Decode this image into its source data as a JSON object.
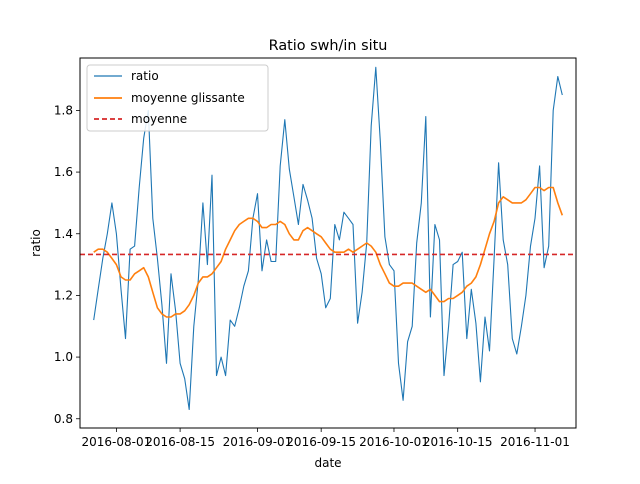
{
  "chart_data": {
    "type": "line",
    "title": "Ratio swh/in situ",
    "xlabel": "date",
    "ylabel": "ratio",
    "xlim": [
      "2016-07-24",
      "2016-11-10"
    ],
    "ylim": [
      0.77,
      1.97
    ],
    "x_ticks": [
      "2016-08-01",
      "2016-08-15",
      "2016-09-01",
      "2016-09-15",
      "2016-10-01",
      "2016-10-15",
      "2016-11-01"
    ],
    "y_ticks": [
      0.8,
      1.0,
      1.2,
      1.4,
      1.6,
      1.8
    ],
    "grid": false,
    "legend_position": "top-left",
    "start_date": "2016-07-27",
    "dates": [
      "2016-07-27",
      "2016-07-28",
      "2016-07-29",
      "2016-07-30",
      "2016-07-31",
      "2016-08-01",
      "2016-08-02",
      "2016-08-03",
      "2016-08-04",
      "2016-08-05",
      "2016-08-06",
      "2016-08-07",
      "2016-08-08",
      "2016-08-09",
      "2016-08-10",
      "2016-08-11",
      "2016-08-12",
      "2016-08-13",
      "2016-08-14",
      "2016-08-15",
      "2016-08-16",
      "2016-08-17",
      "2016-08-18",
      "2016-08-19",
      "2016-08-20",
      "2016-08-21",
      "2016-08-22",
      "2016-08-23",
      "2016-08-24",
      "2016-08-25",
      "2016-08-26",
      "2016-08-27",
      "2016-08-28",
      "2016-08-29",
      "2016-08-30",
      "2016-08-31",
      "2016-09-01",
      "2016-09-02",
      "2016-09-03",
      "2016-09-04",
      "2016-09-05",
      "2016-09-06",
      "2016-09-07",
      "2016-09-08",
      "2016-09-09",
      "2016-09-10",
      "2016-09-11",
      "2016-09-12",
      "2016-09-13",
      "2016-09-14",
      "2016-09-15",
      "2016-09-16",
      "2016-09-17",
      "2016-09-18",
      "2016-09-19",
      "2016-09-20",
      "2016-09-21",
      "2016-09-22",
      "2016-09-23",
      "2016-09-24",
      "2016-09-25",
      "2016-09-26",
      "2016-09-27",
      "2016-09-28",
      "2016-09-29",
      "2016-09-30",
      "2016-10-01",
      "2016-10-02",
      "2016-10-03",
      "2016-10-04",
      "2016-10-05",
      "2016-10-06",
      "2016-10-07",
      "2016-10-08",
      "2016-10-09",
      "2016-10-10",
      "2016-10-11",
      "2016-10-12",
      "2016-10-13",
      "2016-10-14",
      "2016-10-15",
      "2016-10-16",
      "2016-10-17",
      "2016-10-18",
      "2016-10-19",
      "2016-10-20",
      "2016-10-21",
      "2016-10-22",
      "2016-10-23",
      "2016-10-24",
      "2016-10-25",
      "2016-10-26",
      "2016-10-27",
      "2016-10-28",
      "2016-10-29",
      "2016-10-30",
      "2016-10-31",
      "2016-11-01",
      "2016-11-02",
      "2016-11-03",
      "2016-11-04",
      "2016-11-05",
      "2016-11-06",
      "2016-11-07"
    ],
    "series": [
      {
        "name": "ratio",
        "color": "#1f77b4",
        "style": "solid",
        "values": [
          1.12,
          1.22,
          1.32,
          1.4,
          1.5,
          1.4,
          1.22,
          1.06,
          1.35,
          1.36,
          1.55,
          1.71,
          1.8,
          1.45,
          1.32,
          1.17,
          0.98,
          1.27,
          1.15,
          0.98,
          0.93,
          0.83,
          1.1,
          1.25,
          1.5,
          1.3,
          1.59,
          0.94,
          1.0,
          0.94,
          1.12,
          1.1,
          1.16,
          1.23,
          1.28,
          1.45,
          1.53,
          1.28,
          1.38,
          1.31,
          1.31,
          1.62,
          1.77,
          1.61,
          1.52,
          1.43,
          1.56,
          1.51,
          1.45,
          1.32,
          1.27,
          1.16,
          1.19,
          1.43,
          1.38,
          1.47,
          1.45,
          1.43,
          1.11,
          1.21,
          1.37,
          1.75,
          1.94,
          1.7,
          1.39,
          1.3,
          1.28,
          0.98,
          0.86,
          1.05,
          1.1,
          1.37,
          1.5,
          1.78,
          1.13,
          1.43,
          1.38,
          0.94,
          1.1,
          1.3,
          1.31,
          1.34,
          1.06,
          1.22,
          1.11,
          0.92,
          1.13,
          1.02,
          1.32,
          1.63,
          1.38,
          1.3,
          1.06,
          1.01,
          1.1,
          1.2,
          1.36,
          1.45,
          1.62,
          1.29,
          1.36,
          1.8,
          1.91,
          1.85
        ]
      },
      {
        "name": "moyenne glissante",
        "color": "#ff7f0e",
        "style": "solid",
        "values": [
          1.34,
          1.35,
          1.35,
          1.34,
          1.32,
          1.3,
          1.26,
          1.25,
          1.25,
          1.27,
          1.28,
          1.29,
          1.26,
          1.21,
          1.16,
          1.14,
          1.13,
          1.13,
          1.14,
          1.14,
          1.15,
          1.17,
          1.2,
          1.24,
          1.26,
          1.26,
          1.27,
          1.29,
          1.31,
          1.35,
          1.38,
          1.41,
          1.43,
          1.44,
          1.45,
          1.45,
          1.44,
          1.42,
          1.42,
          1.43,
          1.43,
          1.44,
          1.43,
          1.4,
          1.38,
          1.38,
          1.41,
          1.42,
          1.41,
          1.4,
          1.39,
          1.37,
          1.35,
          1.34,
          1.34,
          1.34,
          1.35,
          1.34,
          1.35,
          1.36,
          1.37,
          1.36,
          1.34,
          1.3,
          1.27,
          1.24,
          1.23,
          1.23,
          1.24,
          1.24,
          1.24,
          1.23,
          1.22,
          1.21,
          1.22,
          1.2,
          1.18,
          1.18,
          1.19,
          1.19,
          1.2,
          1.21,
          1.23,
          1.24,
          1.26,
          1.3,
          1.35,
          1.4,
          1.44,
          1.5,
          1.52,
          1.51,
          1.5,
          1.5,
          1.5,
          1.51,
          1.53,
          1.55,
          1.55,
          1.54,
          1.55,
          1.55,
          1.5,
          1.46
        ]
      },
      {
        "name": "moyenne",
        "color": "#d62728",
        "style": "dashed",
        "constant": 1.333
      }
    ]
  }
}
